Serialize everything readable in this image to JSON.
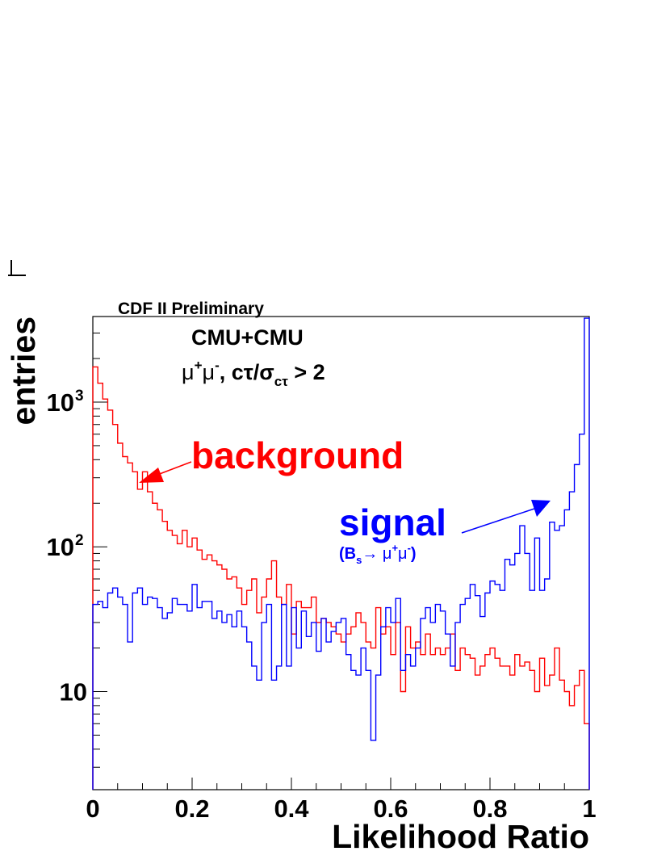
{
  "chart_data": {
    "type": "histogram",
    "title": "CDF II Preliminary",
    "xlabel": "Likelihood Ratio",
    "ylabel": "entries",
    "xlim": [
      0,
      1
    ],
    "ylim": [
      2.1,
      3900
    ],
    "yscale": "log",
    "xticks": [
      {
        "value": 0,
        "label": "0"
      },
      {
        "value": 0.2,
        "label": "0.2"
      },
      {
        "value": 0.4,
        "label": "0.4"
      },
      {
        "value": 0.6,
        "label": "0.6"
      },
      {
        "value": 0.8,
        "label": "0.8"
      },
      {
        "value": 1,
        "label": "1"
      }
    ],
    "yticks": [
      {
        "value": 10,
        "label": "10"
      },
      {
        "value": 100,
        "label": "10",
        "exponent": "2"
      },
      {
        "value": 1000,
        "label": "10",
        "exponent": "3"
      }
    ],
    "annotations": {
      "channel": "CMU+CMU",
      "selection": {
        "mu": "μ",
        "plus": "+",
        "minus": "-",
        "rest": ",  cτ/σ",
        "sub": "cτ",
        "cut": " > 2"
      },
      "background_label": "background",
      "signal_label": "signal",
      "signal_sub": {
        "open": "(B",
        "s": "s",
        "arrow": "→ μ",
        "plus": "+",
        "mu2": "μ",
        "minus": "-",
        "close": ")"
      }
    },
    "bin_width": 0.01,
    "series": [
      {
        "name": "background",
        "color": "#ff0000",
        "values": [
          1750,
          1350,
          1050,
          880,
          700,
          520,
          420,
          380,
          330,
          250,
          330,
          240,
          200,
          180,
          150,
          130,
          120,
          105,
          130,
          100,
          115,
          95,
          82,
          88,
          80,
          75,
          70,
          60,
          62,
          52,
          40,
          50,
          60,
          35,
          45,
          60,
          80,
          45,
          40,
          55,
          25,
          42,
          38,
          38,
          45,
          30,
          32,
          30,
          28,
          25,
          22,
          25,
          28,
          35,
          30,
          22,
          20,
          38,
          25,
          28,
          18,
          30,
          10,
          28,
          20,
          22,
          18,
          25,
          18,
          20,
          18,
          20,
          25,
          14,
          20,
          18,
          17,
          13,
          15,
          18,
          20,
          17,
          15,
          15,
          13,
          18,
          15,
          16,
          14,
          10,
          17,
          11,
          13,
          20,
          12,
          10,
          8,
          11,
          14,
          6
        ]
      },
      {
        "name": "signal",
        "color": "#0000ff",
        "values": [
          40,
          42,
          38,
          48,
          52,
          45,
          40,
          22,
          48,
          52,
          40,
          45,
          44,
          38,
          32,
          35,
          44,
          40,
          40,
          36,
          55,
          38,
          42,
          42,
          32,
          36,
          30,
          34,
          28,
          36,
          28,
          22,
          15,
          12,
          30,
          40,
          12,
          15,
          40,
          15,
          38,
          20,
          36,
          24,
          30,
          19,
          32,
          22,
          26,
          30,
          32,
          18,
          14,
          13,
          20,
          14,
          4.6,
          13,
          28,
          38,
          30,
          44,
          14,
          18,
          15,
          20,
          32,
          38,
          30,
          40,
          36,
          25,
          15,
          30,
          40,
          44,
          55,
          46,
          33,
          48,
          58,
          55,
          50,
          82,
          75,
          90,
          140,
          90,
          50,
          115,
          50,
          60,
          148,
          130,
          140,
          180,
          240,
          370,
          600,
          3800
        ]
      }
    ]
  }
}
